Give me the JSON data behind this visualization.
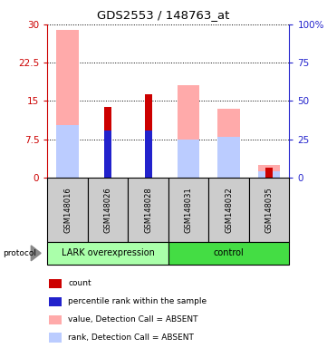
{
  "title": "GDS2553 / 148763_at",
  "samples": [
    "GSM148016",
    "GSM148026",
    "GSM148028",
    "GSM148031",
    "GSM148032",
    "GSM148035"
  ],
  "ylim_left": [
    0,
    30
  ],
  "ylim_right": [
    0,
    100
  ],
  "yticks_left": [
    0,
    7.5,
    15,
    22.5,
    30
  ],
  "yticks_right": [
    0,
    25,
    50,
    75,
    100
  ],
  "yticklabels_left": [
    "0",
    "7.5",
    "15",
    "22.5",
    "30"
  ],
  "yticklabels_right": [
    "0",
    "25",
    "50",
    "75",
    "100%"
  ],
  "count_bars": [
    0,
    13.8,
    16.3,
    0,
    0,
    2.0
  ],
  "count_color": "#cc0000",
  "rank_bars": [
    0,
    9.2,
    9.2,
    0,
    0,
    0
  ],
  "rank_color": "#2222cc",
  "value_absent_bars": [
    29.0,
    0,
    0,
    18.0,
    13.5,
    2.5
  ],
  "value_absent_color": "#ffaaaa",
  "rank_absent_bars": [
    10.2,
    0,
    0,
    7.5,
    8.0,
    1.2
  ],
  "rank_absent_color": "#bbccff",
  "legend_items": [
    {
      "label": "count",
      "color": "#cc0000"
    },
    {
      "label": "percentile rank within the sample",
      "color": "#2222cc"
    },
    {
      "label": "value, Detection Call = ABSENT",
      "color": "#ffaaaa"
    },
    {
      "label": "rank, Detection Call = ABSENT",
      "color": "#bbccff"
    }
  ],
  "wide_bar_width": 0.55,
  "narrow_bar_width": 0.18,
  "left_axis_color": "#cc0000",
  "right_axis_color": "#2222cc",
  "sample_cell_color": "#cccccc",
  "group_cell_lark_color": "#aaffaa",
  "group_cell_control_color": "#44dd44",
  "bg_color": "#ffffff"
}
